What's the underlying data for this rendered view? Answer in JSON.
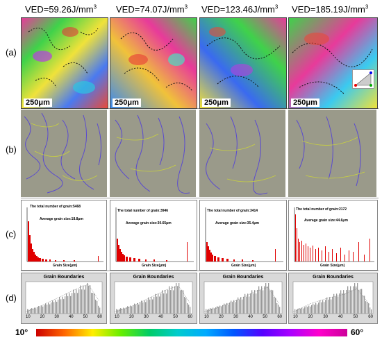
{
  "columns": [
    {
      "header": "VED=59.26J/mm",
      "hist_title": "The total number of grain:5468",
      "hist_avg": "Average grain size:18.8μm"
    },
    {
      "header": "VED=74.07J/mm",
      "hist_title": "The total number of grain:3946",
      "hist_avg": "Average grain size:30.65μm"
    },
    {
      "header": "VED=123.46J/mm",
      "hist_title": "The total number of grain:3414",
      "hist_avg": "Average grain size:35.4μm"
    },
    {
      "header": "VED=185.19J/mm",
      "hist_title": "The total number of grain:2172",
      "hist_avg": "Average grain size:44.6μm"
    }
  ],
  "unit_superscript": "3",
  "row_labels": [
    "(a)",
    "(b)",
    "(c)",
    "(d)"
  ],
  "scale_bar": "250μm",
  "gb_title": "Grain Boundaries",
  "gb_ticks": [
    "10",
    "20",
    "30",
    "40",
    "50",
    "60"
  ],
  "hist_xlabel": "Grain Size(μm)",
  "hist_ylabel": "Grain Size Distribution(%)",
  "colorbar": {
    "min": "10°",
    "max": "60°"
  }
}
